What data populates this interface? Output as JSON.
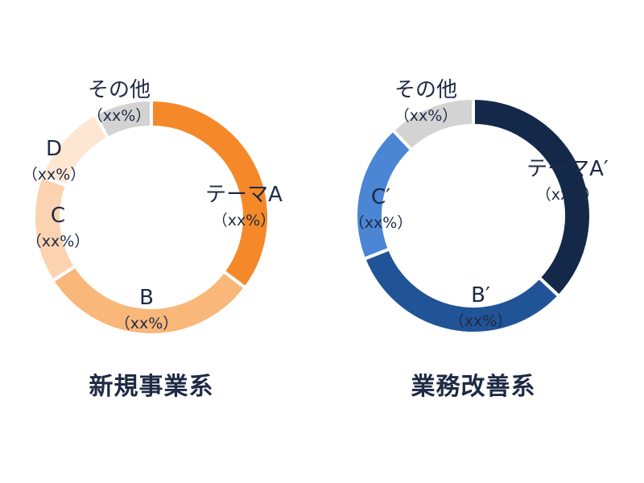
{
  "chart_data": [
    {
      "type": "pie",
      "title": "新規事業系",
      "categories": [
        "テーマA",
        "B",
        "C",
        "D",
        "その他"
      ],
      "values": [
        31,
        27,
        13,
        10,
        7
      ],
      "value_labels": [
        "（xx%）",
        "（xx%）",
        "（xx%）",
        "（xx%）",
        "（xx%）"
      ],
      "colors": [
        "#f5892a",
        "#f9b77a",
        "#fbd3b0",
        "#fde7d3",
        "#d3d3d3"
      ],
      "style": "donut"
    },
    {
      "type": "pie",
      "title": "業務改善系",
      "categories": [
        "テーマA′",
        "B′",
        "C′",
        "その他"
      ],
      "values": [
        37,
        32,
        19,
        12
      ],
      "value_labels": [
        "（xx%）",
        "（xx%）",
        "（xx%）",
        "（xx%）"
      ],
      "colors": [
        "#14284a",
        "#215496",
        "#4a86d3",
        "#d3d3d3"
      ],
      "style": "donut"
    }
  ]
}
